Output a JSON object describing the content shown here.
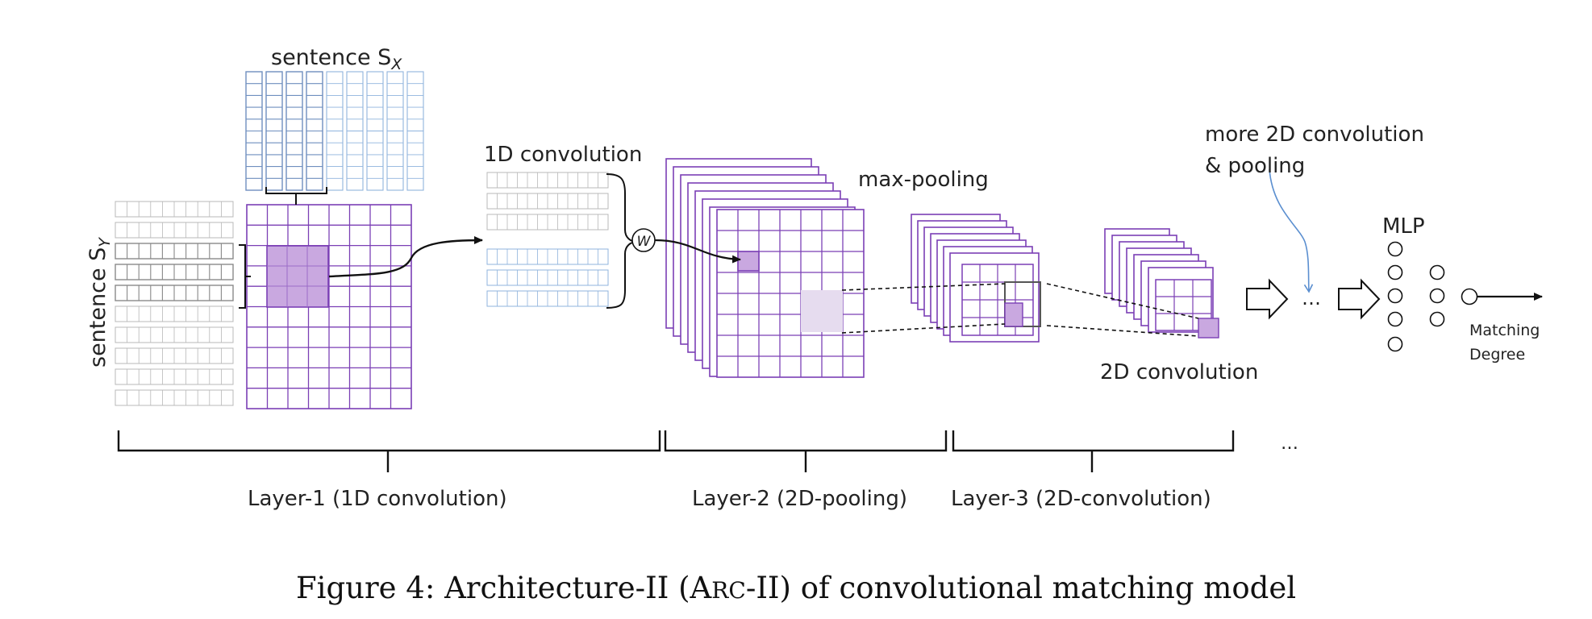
{
  "labels": {
    "sentence_x": "sentence S",
    "sentence_x_sub": "X",
    "sentence_y": "sentence S",
    "sentence_y_sub": "Y",
    "conv1d": "1D  convolution",
    "weight": "W",
    "max_pooling": "max-pooling",
    "more_conv": "more 2D  convolution",
    "more_conv_2": "&  pooling",
    "ellipsis_flow": "…",
    "ellipsis_layers": "…",
    "mlp": "MLP",
    "matching": "Matching",
    "degree": "Degree",
    "conv2d": "2D  convolution"
  },
  "layers": [
    {
      "label": "Layer-1  (1D convolution)"
    },
    {
      "label": "Layer-2   (2D-pooling)"
    },
    {
      "label": "Layer-3   (2D-convolution)"
    }
  ],
  "caption": {
    "prefix": "Figure 4: Architecture-II (A",
    "smallcaps": "RC",
    "suffix": "-II) of convolutional matching model"
  },
  "colors": {
    "purple": "#7b3fb5",
    "purple_fill": "#c9a8e0",
    "purple_light": "#e6dcef",
    "blue": "#8fb3dd",
    "gray": "#b8b8b8",
    "dark": "#111111",
    "arrow_blue": "#5b8fd0"
  }
}
